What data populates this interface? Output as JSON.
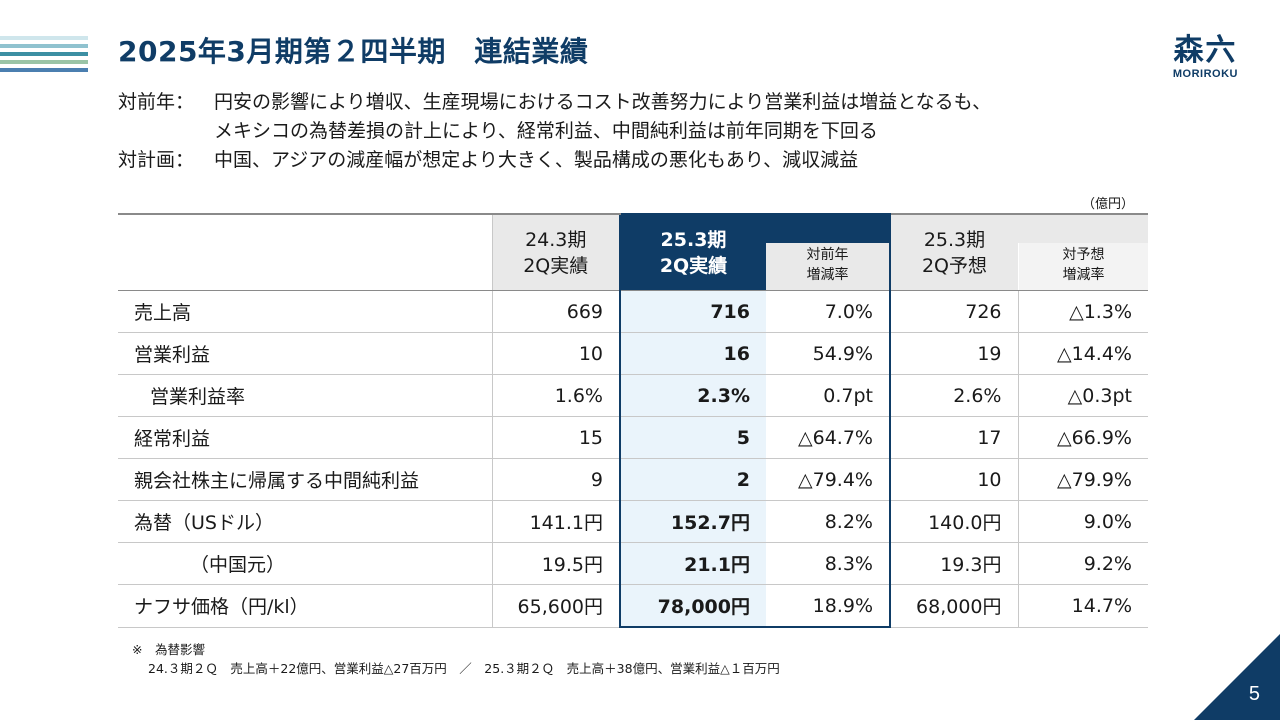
{
  "colors": {
    "brand": "#0f3c66",
    "highlight_bg": "#eaf4fb",
    "header_gray": "#e9e9e9"
  },
  "title": "2025年3月期第２四半期　連結業績",
  "logo": {
    "kanji": "森六",
    "roman": "MORIROKU"
  },
  "summary": [
    {
      "label": "対前年：",
      "lines": [
        "円安の影響により増収、生産現場におけるコスト改善努力により営業利益は増益となるも、",
        "メキシコの為替差損の計上により、経常利益、中間純利益は前年同期を下回る"
      ]
    },
    {
      "label": "対計画：",
      "lines": [
        "中国、アジアの減産幅が想定より大きく、製品構成の悪化もあり、減収減益"
      ]
    }
  ],
  "unit": "（億円）",
  "headers": {
    "prev_main": [
      "24.3期",
      "2Q実績"
    ],
    "curr_main": [
      "25.3期",
      "2Q実績"
    ],
    "yoy": [
      "対前年",
      "増減率"
    ],
    "plan_main": [
      "25.3期",
      "2Q予想"
    ],
    "vsplan": [
      "対予想",
      "増減率"
    ]
  },
  "rows": [
    {
      "label": "売上高",
      "prev": "669",
      "curr": "716",
      "yoy": "7.0%",
      "plan": "726",
      "vsplan": "△1.3%"
    },
    {
      "label": "営業利益",
      "prev": "10",
      "curr": "16",
      "yoy": "54.9%",
      "plan": "19",
      "vsplan": "△14.4%"
    },
    {
      "label": "営業利益率",
      "prev": "1.6%",
      "curr": "2.3%",
      "yoy": "0.7pt",
      "plan": "2.6%",
      "vsplan": "△0.3pt"
    },
    {
      "label": "経常利益",
      "prev": "15",
      "curr": "5",
      "yoy": "△64.7%",
      "plan": "17",
      "vsplan": "△66.9%"
    },
    {
      "label": "親会社株主に帰属する中間純利益",
      "prev": "9",
      "curr": "2",
      "yoy": "△79.4%",
      "plan": "10",
      "vsplan": "△79.9%"
    },
    {
      "label": "為替（USドル）",
      "prev": "141.1円",
      "curr": "152.7円",
      "yoy": "8.2%",
      "plan": "140.0円",
      "vsplan": "9.0%"
    },
    {
      "label": "（中国元）",
      "prev": "19.5円",
      "curr": "21.1円",
      "yoy": "8.3%",
      "plan": "19.3円",
      "vsplan": "9.2%"
    },
    {
      "label": "ナフサ価格（円/kl）",
      "prev": "65,600円",
      "curr": "78,000円",
      "yoy": "18.9%",
      "plan": "68,000円",
      "vsplan": "14.7%"
    }
  ],
  "note": {
    "heading": "※　為替影響",
    "text": "24.３期２Ｑ　売上高＋22億円、営業利益△27百万円　／　25.３期２Ｑ　売上高＋38億円、営業利益△１百万円"
  },
  "page_number": "5"
}
